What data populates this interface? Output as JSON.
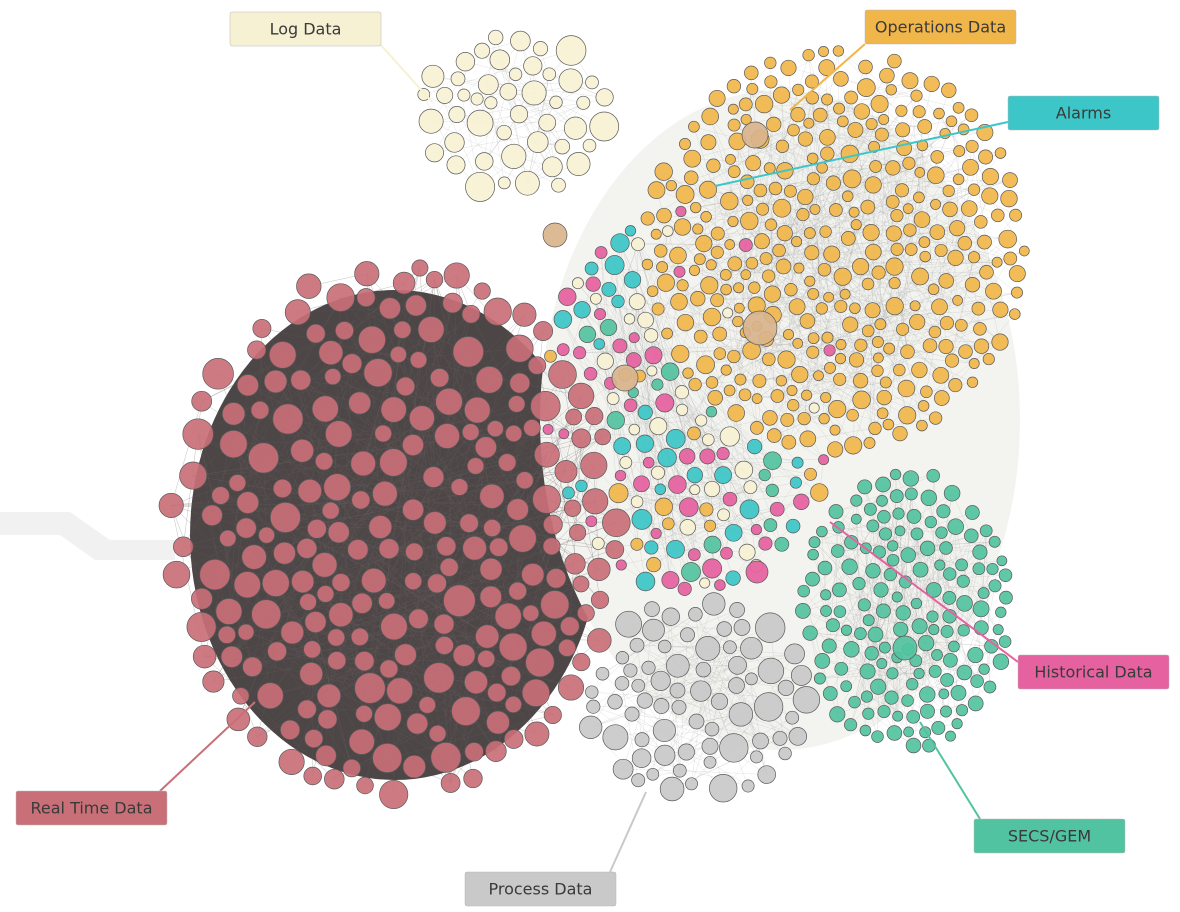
{
  "labels": [
    {
      "text": "Log Data",
      "color": "#f7f1d4"
    },
    {
      "text": "Operations Data",
      "color": "#f1b64a"
    },
    {
      "text": "Alarms",
      "color": "#3cc6c8"
    },
    {
      "text": "Historical Data",
      "color": "#e6619f"
    },
    {
      "text": "SECS/GEM",
      "color": "#52c3a0"
    },
    {
      "text": "Process Data",
      "color": "#c9c9c9"
    },
    {
      "text": "Real Time Data",
      "color": "#c96f77"
    }
  ]
}
